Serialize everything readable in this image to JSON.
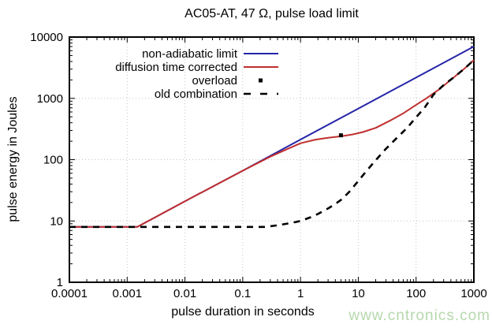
{
  "watermark": "www.cntronics.com",
  "colors": {
    "background": "#ffffff",
    "axis": "#000000",
    "grid": "#c4c4c4",
    "non_adiabatic_line": "#2525a8",
    "diffusion_line": "#c02f2f",
    "overload_marker": "#000000",
    "old_combination_line": "#000000",
    "watermark": "#b6d8ad"
  },
  "chart_data": {
    "type": "line",
    "title": "AC05-AT, 47 Ω, pulse load limit",
    "xlabel": "pulse duration in seconds",
    "ylabel": "pulse energy in Joules",
    "xscale": "log",
    "yscale": "log",
    "xlim": [
      0.0001,
      1000
    ],
    "ylim": [
      1,
      10000
    ],
    "xticks": [
      0.0001,
      0.001,
      0.01,
      0.1,
      1,
      10,
      100,
      1000
    ],
    "xtick_labels": [
      "0.0001",
      "0.001",
      "0.01",
      "0.1",
      "1",
      "10",
      "100",
      "1000"
    ],
    "yticks": [
      1,
      10,
      100,
      1000,
      10000
    ],
    "ytick_labels": [
      "1",
      "10",
      "100",
      "1000",
      "10000"
    ],
    "grid": "dotted lines at major decades, mirrored inward minor log ticks on all four borders",
    "legend_position": "inside top-left, right-aligned labels, no frame",
    "series": [
      {
        "name": "non-adiabatic limit",
        "type": "line",
        "style": "solid",
        "color": "#2525a8",
        "points": [
          [
            0.0001,
            8
          ],
          [
            0.0015,
            8
          ],
          [
            0.01,
            21
          ],
          [
            0.1,
            66
          ],
          [
            1,
            213
          ],
          [
            10,
            682
          ],
          [
            100,
            2180
          ],
          [
            1000,
            7000
          ]
        ]
      },
      {
        "name": "diffusion time corrected",
        "type": "line",
        "style": "solid",
        "color": "#c02f2f",
        "points": [
          [
            0.0001,
            8
          ],
          [
            0.0015,
            8
          ],
          [
            0.01,
            21
          ],
          [
            0.1,
            66
          ],
          [
            0.3,
            112
          ],
          [
            0.6,
            150
          ],
          [
            1,
            185
          ],
          [
            1.8,
            212
          ],
          [
            3,
            228
          ],
          [
            5,
            240
          ],
          [
            8,
            258
          ],
          [
            12,
            282
          ],
          [
            20,
            330
          ],
          [
            35,
            430
          ],
          [
            60,
            570
          ],
          [
            100,
            780
          ],
          [
            150,
            1000
          ],
          [
            250,
            1400
          ],
          [
            450,
            2200
          ],
          [
            700,
            3100
          ],
          [
            1000,
            4200
          ]
        ]
      },
      {
        "name": "overload",
        "type": "points",
        "marker": "square",
        "color": "#000000",
        "points": [
          [
            5,
            250
          ]
        ]
      },
      {
        "name": "old combination",
        "type": "line",
        "style": "dashed",
        "color": "#000000",
        "points": [
          [
            0.0001,
            8
          ],
          [
            0.25,
            8
          ],
          [
            0.4,
            8.5
          ],
          [
            0.7,
            9.3
          ],
          [
            1,
            10
          ],
          [
            1.5,
            11.5
          ],
          [
            2,
            13
          ],
          [
            3,
            16
          ],
          [
            4,
            19
          ],
          [
            5,
            22
          ],
          [
            7,
            30
          ],
          [
            10,
            45
          ],
          [
            14,
            66
          ],
          [
            20,
            98
          ],
          [
            30,
            150
          ],
          [
            45,
            220
          ],
          [
            70,
            330
          ],
          [
            100,
            490
          ],
          [
            140,
            700
          ],
          [
            200,
            1150
          ],
          [
            300,
            1650
          ],
          [
            450,
            2200
          ],
          [
            700,
            3100
          ],
          [
            1000,
            4200
          ]
        ]
      }
    ]
  }
}
